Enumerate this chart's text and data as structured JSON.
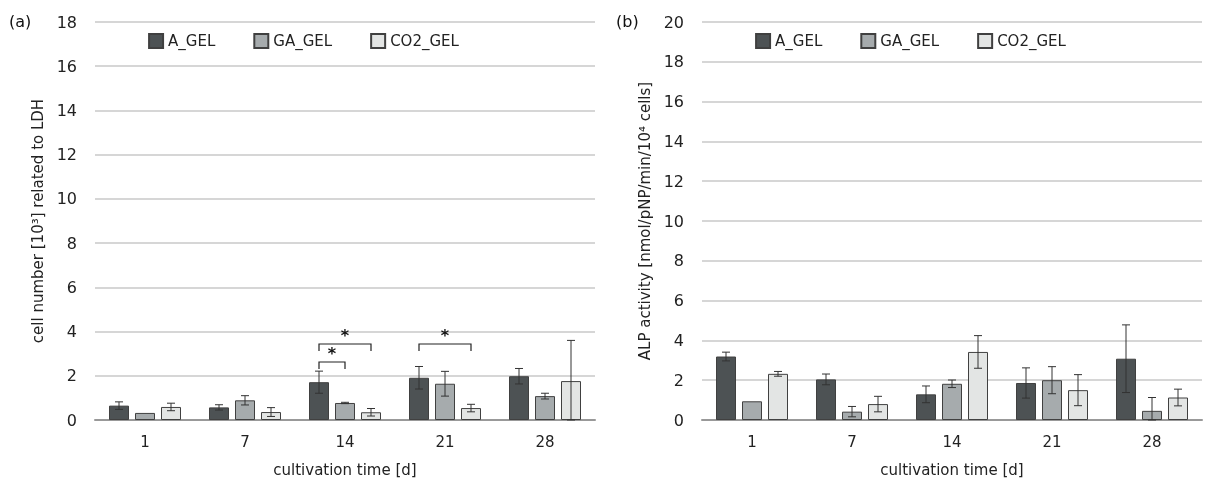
{
  "chart_data": [
    {
      "type": "bar",
      "title": "(a)",
      "xlabel": "cultivation time [d]",
      "ylabel": "cell number [10³] related to LDH",
      "categories": [
        "1",
        "7",
        "14",
        "21",
        "28"
      ],
      "ylim": [
        0,
        18
      ],
      "yticks": [
        0,
        2,
        4,
        6,
        8,
        10,
        12,
        14,
        16,
        18
      ],
      "grid": "y",
      "legend": "top",
      "annotations": [
        "*",
        "*",
        "*"
      ],
      "series": [
        {
          "name": "A_GEL",
          "color": "#4d5254",
          "values": [
            0.65,
            0.57,
            1.71,
            1.91,
            1.98
          ],
          "errors": [
            [
              0.48,
              0.82
            ],
            [
              0.45,
              0.69
            ],
            [
              1.21,
              2.21
            ],
            [
              1.4,
              2.42
            ],
            [
              1.63,
              2.33
            ]
          ]
        },
        {
          "name": "GA_GEL",
          "color": "#a6abad",
          "values": [
            0.32,
            0.89,
            0.77,
            1.64,
            1.08
          ],
          "errors": [
            null,
            [
              0.68,
              1.1
            ],
            [
              0.74,
              0.8
            ],
            [
              1.08,
              2.2
            ],
            [
              0.95,
              1.21
            ]
          ]
        },
        {
          "name": "CO2_GEL",
          "color": "#e3e5e4",
          "values": [
            0.59,
            0.36,
            0.35,
            0.54,
            1.76
          ],
          "errors": [
            [
              0.42,
              0.76
            ],
            [
              0.16,
              0.56
            ],
            [
              0.18,
              0.52
            ],
            [
              0.37,
              0.71
            ],
            [
              0,
              3.6
            ]
          ]
        }
      ]
    },
    {
      "type": "bar",
      "title": "(b)",
      "xlabel": "cultivation time [d]",
      "ylabel": "ALP activity [nmol/pNP/min/10⁴ cells]",
      "categories": [
        "1",
        "7",
        "14",
        "21",
        "28"
      ],
      "ylim": [
        0,
        20
      ],
      "yticks": [
        0,
        2,
        4,
        6,
        8,
        10,
        12,
        14,
        16,
        18,
        20
      ],
      "grid": "y",
      "legend": "top",
      "series": [
        {
          "name": "A_GEL",
          "color": "#4d5254",
          "values": [
            3.19,
            2.04,
            1.29,
            1.86,
            3.08
          ],
          "errors": [
            [
              2.97,
              3.41
            ],
            [
              1.77,
              2.31
            ],
            [
              0.87,
              1.71
            ],
            [
              1.1,
              2.62
            ],
            [
              1.38,
              4.78
            ]
          ]
        },
        {
          "name": "GA_GEL",
          "color": "#a6abad",
          "values": [
            0.94,
            0.42,
            1.82,
            2.0,
            0.46
          ],
          "errors": [
            null,
            [
              0.16,
              0.68
            ],
            [
              1.63,
              2.01
            ],
            [
              1.32,
              2.68
            ],
            [
              0,
              1.13
            ]
          ]
        },
        {
          "name": "CO2_GEL",
          "color": "#e3e5e4",
          "values": [
            2.32,
            0.8,
            3.42,
            1.5,
            1.13
          ],
          "errors": [
            [
              2.2,
              2.44
            ],
            [
              0.41,
              1.19
            ],
            [
              2.6,
              4.24
            ],
            [
              0.72,
              2.28
            ],
            [
              0.71,
              1.55
            ]
          ]
        }
      ]
    }
  ]
}
